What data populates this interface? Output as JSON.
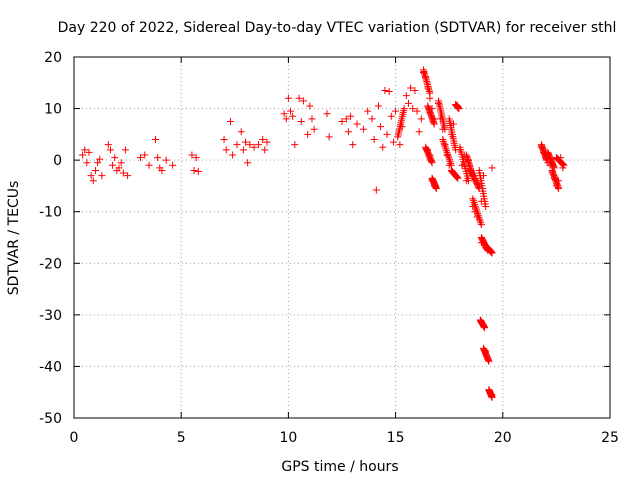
{
  "chart_data": {
    "type": "scatter",
    "title": "Day 220 of 2022, Sidereal Day-to-day VTEC variation (SDTVAR) for receiver sthl",
    "xlabel": "GPS time / hours",
    "ylabel": "SDTVAR / TECUs",
    "xlim": [
      0,
      25
    ],
    "ylim": [
      -50,
      20
    ],
    "x_ticks": [
      "0",
      "5",
      "10",
      "15",
      "20",
      "25"
    ],
    "y_ticks": [
      "20",
      "10",
      "0",
      "-10",
      "-20",
      "-30",
      "-40",
      "-50"
    ],
    "grid": true,
    "marker": "plus",
    "color": "#ff0000",
    "points": [
      [
        0.4,
        1.0
      ],
      [
        0.5,
        2.0
      ],
      [
        0.6,
        -0.5
      ],
      [
        0.7,
        1.5
      ],
      [
        0.8,
        -3.0
      ],
      [
        0.9,
        -4.0
      ],
      [
        1.0,
        -2.0
      ],
      [
        1.1,
        -0.5
      ],
      [
        1.2,
        0.2
      ],
      [
        1.3,
        -3.0
      ],
      [
        1.6,
        3.0
      ],
      [
        1.7,
        2.0
      ],
      [
        1.8,
        -1.0
      ],
      [
        1.9,
        0.5
      ],
      [
        2.0,
        -2.0
      ],
      [
        2.1,
        -1.5
      ],
      [
        2.2,
        -0.5
      ],
      [
        2.3,
        -2.5
      ],
      [
        2.4,
        2.0
      ],
      [
        2.5,
        -3.0
      ],
      [
        3.1,
        0.5
      ],
      [
        3.3,
        1.0
      ],
      [
        3.5,
        -1.0
      ],
      [
        3.8,
        4.0
      ],
      [
        3.9,
        0.5
      ],
      [
        4.0,
        -1.5
      ],
      [
        4.1,
        -2.0
      ],
      [
        4.3,
        0.0
      ],
      [
        4.6,
        -1.0
      ],
      [
        5.5,
        1.0
      ],
      [
        5.7,
        0.5
      ],
      [
        5.6,
        -2.0
      ],
      [
        5.8,
        -2.2
      ],
      [
        7.0,
        4.0
      ],
      [
        7.1,
        2.0
      ],
      [
        7.3,
        7.5
      ],
      [
        7.4,
        1.0
      ],
      [
        7.6,
        3.0
      ],
      [
        7.8,
        5.5
      ],
      [
        7.9,
        2.0
      ],
      [
        8.0,
        3.5
      ],
      [
        8.1,
        -0.5
      ],
      [
        8.2,
        3.0
      ],
      [
        8.4,
        2.5
      ],
      [
        8.6,
        3.0
      ],
      [
        8.8,
        4.0
      ],
      [
        8.9,
        2.0
      ],
      [
        9.0,
        3.5
      ],
      [
        9.8,
        9.0
      ],
      [
        9.9,
        8.0
      ],
      [
        10.0,
        12.0
      ],
      [
        10.1,
        9.5
      ],
      [
        10.2,
        8.5
      ],
      [
        10.3,
        3.0
      ],
      [
        10.5,
        12.0
      ],
      [
        10.6,
        7.5
      ],
      [
        10.7,
        11.5
      ],
      [
        10.9,
        5.0
      ],
      [
        11.0,
        10.5
      ],
      [
        11.1,
        8.0
      ],
      [
        11.2,
        6.0
      ],
      [
        11.8,
        9.0
      ],
      [
        11.9,
        4.5
      ],
      [
        12.5,
        7.5
      ],
      [
        12.7,
        8.0
      ],
      [
        12.8,
        5.5
      ],
      [
        12.9,
        8.5
      ],
      [
        13.0,
        3.0
      ],
      [
        13.2,
        7.0
      ],
      [
        13.5,
        6.0
      ],
      [
        13.7,
        9.5
      ],
      [
        13.9,
        8.0
      ],
      [
        14.0,
        4.0
      ],
      [
        14.1,
        -5.8
      ],
      [
        14.2,
        10.5
      ],
      [
        14.3,
        6.5
      ],
      [
        14.4,
        2.5
      ],
      [
        14.5,
        13.5
      ],
      [
        14.6,
        5.0
      ],
      [
        14.7,
        13.3
      ],
      [
        14.8,
        8.5
      ],
      [
        14.9,
        3.5
      ],
      [
        15.0,
        9.5
      ],
      [
        15.2,
        3.0
      ],
      [
        15.3,
        6.5
      ],
      [
        15.5,
        12.5
      ],
      [
        15.6,
        11.0
      ],
      [
        15.7,
        14.0
      ],
      [
        15.8,
        10.0
      ],
      [
        15.9,
        13.5
      ],
      [
        16.0,
        9.5
      ],
      [
        16.1,
        5.5
      ],
      [
        16.2,
        8.0
      ],
      [
        16.3,
        17.0
      ],
      [
        16.4,
        16.0
      ],
      [
        16.5,
        14.0
      ],
      [
        16.6,
        12.0
      ],
      [
        16.7,
        10.0
      ],
      [
        16.8,
        8.0
      ],
      [
        16.5,
        2.0
      ],
      [
        16.6,
        1.0
      ],
      [
        16.7,
        -4.0
      ],
      [
        16.8,
        -5.0
      ],
      [
        17.0,
        11.0
      ],
      [
        17.1,
        8.0
      ],
      [
        17.2,
        6.0
      ],
      [
        17.3,
        3.0
      ],
      [
        17.4,
        1.0
      ],
      [
        17.5,
        -1.0
      ],
      [
        17.6,
        5.0
      ],
      [
        17.7,
        7.0
      ],
      [
        17.8,
        -3.0
      ],
      [
        17.9,
        10.5
      ],
      [
        18.0,
        2.0
      ],
      [
        18.1,
        -1.0
      ],
      [
        18.2,
        1.0
      ],
      [
        18.3,
        -4.0
      ],
      [
        18.4,
        0.0
      ],
      [
        18.5,
        -2.0
      ],
      [
        18.6,
        -9.0
      ],
      [
        18.7,
        -10.0
      ],
      [
        18.8,
        -11.0
      ],
      [
        18.9,
        -5.0
      ],
      [
        19.0,
        -8.0
      ],
      [
        19.1,
        -3.0
      ],
      [
        19.0,
        -16.0
      ],
      [
        19.2,
        -17.0
      ],
      [
        19.4,
        -17.5
      ],
      [
        19.5,
        -1.5
      ],
      [
        19.0,
        -31.5
      ],
      [
        19.1,
        -32.0
      ],
      [
        19.2,
        -37.0
      ],
      [
        19.3,
        -38.5
      ],
      [
        19.4,
        -45.0
      ],
      [
        19.5,
        -45.5
      ],
      [
        21.8,
        2.5
      ],
      [
        21.9,
        1.5
      ],
      [
        22.0,
        0.5
      ],
      [
        22.1,
        -0.5
      ],
      [
        22.2,
        -1.0
      ],
      [
        22.3,
        -2.5
      ],
      [
        22.4,
        -3.5
      ],
      [
        22.5,
        -5.0
      ],
      [
        22.6,
        -4.0
      ],
      [
        22.7,
        0.5
      ],
      [
        22.8,
        -1.5
      ]
    ],
    "streaks": [
      {
        "x": [
          15.1,
          15.4
        ],
        "y": [
          4.5,
          10.0
        ]
      },
      {
        "x": [
          16.3,
          16.6
        ],
        "y": [
          17.5,
          13.0
        ]
      },
      {
        "x": [
          16.5,
          16.8
        ],
        "y": [
          10.5,
          7.0
        ]
      },
      {
        "x": [
          16.4,
          16.7
        ],
        "y": [
          2.5,
          -0.5
        ]
      },
      {
        "x": [
          16.7,
          16.9
        ],
        "y": [
          -3.5,
          -5.5
        ]
      },
      {
        "x": [
          17.0,
          17.3
        ],
        "y": [
          11.5,
          6.0
        ]
      },
      {
        "x": [
          17.2,
          17.6
        ],
        "y": [
          4.0,
          -1.0
        ]
      },
      {
        "x": [
          17.5,
          17.8
        ],
        "y": [
          8.0,
          2.0
        ]
      },
      {
        "x": [
          17.6,
          17.9
        ],
        "y": [
          -2.0,
          -3.5
        ]
      },
      {
        "x": [
          17.8,
          17.95
        ],
        "y": [
          10.8,
          10.0
        ]
      },
      {
        "x": [
          18.0,
          18.4
        ],
        "y": [
          2.5,
          -4.0
        ]
      },
      {
        "x": [
          18.3,
          18.6
        ],
        "y": [
          1.0,
          -3.0
        ]
      },
      {
        "x": [
          18.5,
          18.9
        ],
        "y": [
          -2.0,
          -5.5
        ]
      },
      {
        "x": [
          18.6,
          19.0
        ],
        "y": [
          -7.5,
          -12.5
        ]
      },
      {
        "x": [
          18.9,
          19.2
        ],
        "y": [
          -2.0,
          -9.0
        ]
      },
      {
        "x": [
          19.0,
          19.3
        ],
        "y": [
          -15.0,
          -17.5
        ]
      },
      {
        "x": [
          19.3,
          19.5
        ],
        "y": [
          -17.0,
          -18.0
        ]
      },
      {
        "x": [
          18.95,
          19.15
        ],
        "y": [
          -31.0,
          -32.5
        ]
      },
      {
        "x": [
          19.1,
          19.35
        ],
        "y": [
          -36.5,
          -39.0
        ]
      },
      {
        "x": [
          19.35,
          19.5
        ],
        "y": [
          -44.5,
          -46.0
        ]
      },
      {
        "x": [
          21.8,
          22.05
        ],
        "y": [
          3.0,
          0.0
        ]
      },
      {
        "x": [
          22.1,
          22.4
        ],
        "y": [
          1.5,
          -1.5
        ]
      },
      {
        "x": [
          22.3,
          22.6
        ],
        "y": [
          -2.0,
          -5.5
        ]
      },
      {
        "x": [
          22.5,
          22.85
        ],
        "y": [
          0.5,
          -1.0
        ]
      }
    ]
  }
}
